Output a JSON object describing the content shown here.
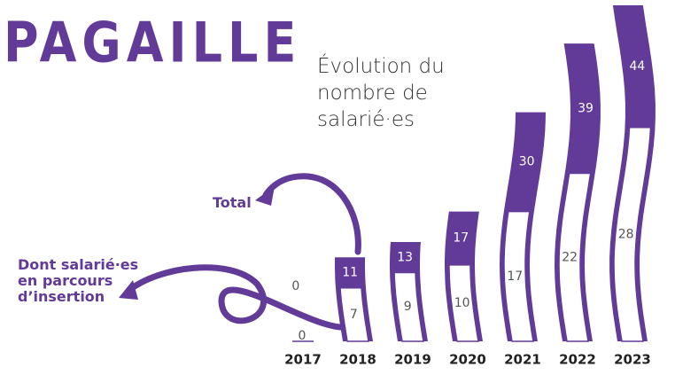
{
  "header": {
    "title": "PAGAILLE"
  },
  "chart_data": {
    "type": "bar",
    "title": "Évolution du nombre de salarié·es",
    "categories": [
      "2017",
      "2018",
      "2019",
      "2020",
      "2021",
      "2022",
      "2023"
    ],
    "series": [
      {
        "name": "Total",
        "color": "#623a98",
        "values": [
          0,
          11,
          13,
          17,
          30,
          39,
          44
        ]
      },
      {
        "name": "Dont salarié·es en parcours d’insertion",
        "color": "#ffffff",
        "values": [
          0,
          7,
          9,
          10,
          17,
          22,
          28
        ]
      }
    ],
    "ylim": [
      0,
      44
    ]
  }
}
